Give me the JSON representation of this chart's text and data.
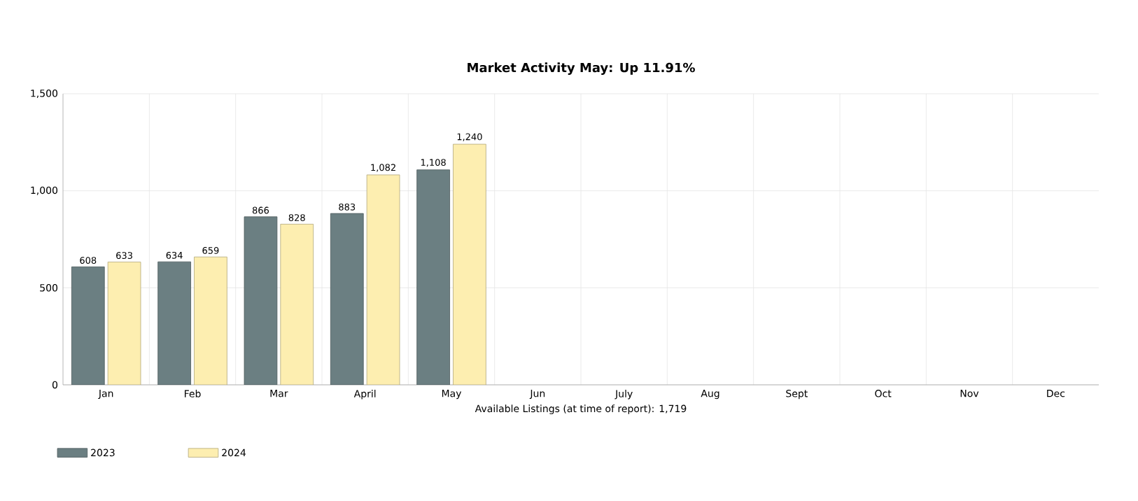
{
  "chart_data": {
    "type": "bar",
    "title": "Market Activity May: Up 11.91%",
    "xlabel": "Available Listings (at time of report): 1,719",
    "categories": [
      "Jan",
      "Feb",
      "Mar",
      "April",
      "May",
      "Jun",
      "July",
      "Aug",
      "Sept",
      "Oct",
      "Nov",
      "Dec"
    ],
    "series": [
      {
        "name": "2023",
        "color": "#6b7f82",
        "values": [
          608,
          634,
          866,
          883,
          1108,
          null,
          null,
          null,
          null,
          null,
          null,
          null
        ],
        "value_labels": [
          "608",
          "634",
          "866",
          "883",
          "1,108",
          null,
          null,
          null,
          null,
          null,
          null,
          null
        ]
      },
      {
        "name": "2024",
        "color": "#fdeeb0",
        "values": [
          633,
          659,
          828,
          1082,
          1240,
          null,
          null,
          null,
          null,
          null,
          null,
          null
        ],
        "value_labels": [
          "633",
          "659",
          "828",
          "1,082",
          "1,240",
          null,
          null,
          null,
          null,
          null,
          null,
          null
        ]
      }
    ],
    "ylim": [
      0,
      1500
    ],
    "yticks": [
      0,
      500,
      {
        "value": 1000,
        "label": "1,000"
      },
      {
        "value": 1500,
        "label": "1,500"
      }
    ],
    "grid": true,
    "legend": "bottom left"
  }
}
